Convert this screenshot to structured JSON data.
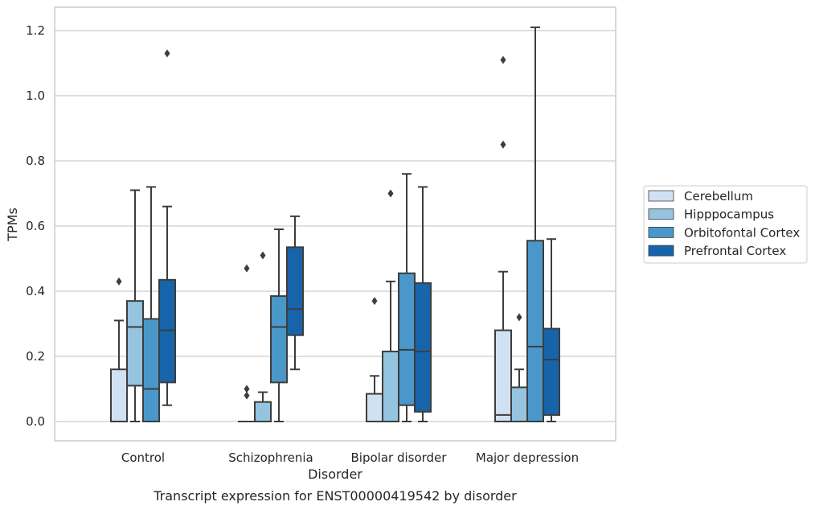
{
  "chart_data": {
    "type": "box",
    "title": "",
    "caption": "Transcript expression for ENST00000419542 by disorder",
    "xlabel": "Disorder",
    "ylabel": "TPMs",
    "ylim": [
      -0.06,
      1.27
    ],
    "yticks": [
      "0.0",
      "0.2",
      "0.4",
      "0.6",
      "0.8",
      "1.0",
      "1.2"
    ],
    "grid": "horizontal",
    "legend_position": "right",
    "categories": [
      "Control",
      "Schizophrenia",
      "Bipolar disorder",
      "Major depression"
    ],
    "series": [
      {
        "name": "Cerebellum",
        "color": "#d0e1f2",
        "boxes": [
          {
            "whislo": 0.0,
            "q1": 0.0,
            "med": 0.0,
            "q3": 0.16,
            "whishi": 0.31,
            "fliers": [
              0.43
            ]
          },
          {
            "whislo": 0.0,
            "q1": 0.0,
            "med": 0.0,
            "q3": 0.0,
            "whishi": 0.0,
            "fliers": [
              0.1,
              0.08,
              0.47
            ]
          },
          {
            "whislo": 0.0,
            "q1": 0.0,
            "med": 0.0,
            "q3": 0.085,
            "whishi": 0.14,
            "fliers": [
              0.37
            ]
          },
          {
            "whislo": 0.0,
            "q1": 0.0,
            "med": 0.02,
            "q3": 0.28,
            "whishi": 0.46,
            "fliers": [
              0.85,
              1.11
            ]
          }
        ]
      },
      {
        "name": "Hipppocampus",
        "color": "#94c4df",
        "boxes": [
          {
            "whislo": 0.0,
            "q1": 0.11,
            "med": 0.29,
            "q3": 0.37,
            "whishi": 0.71,
            "fliers": []
          },
          {
            "whislo": 0.0,
            "q1": 0.0,
            "med": 0.0,
            "q3": 0.06,
            "whishi": 0.09,
            "fliers": [
              0.51
            ]
          },
          {
            "whislo": 0.0,
            "q1": 0.0,
            "med": 0.0,
            "q3": 0.215,
            "whishi": 0.43,
            "fliers": [
              0.7
            ]
          },
          {
            "whislo": 0.0,
            "q1": 0.0,
            "med": 0.0,
            "q3": 0.105,
            "whishi": 0.16,
            "fliers": [
              0.32
            ]
          }
        ]
      },
      {
        "name": "Orbitofontal Cortex",
        "color": "#4a98c9",
        "boxes": [
          {
            "whislo": 0.0,
            "q1": 0.0,
            "med": 0.1,
            "q3": 0.315,
            "whishi": 0.72,
            "fliers": []
          },
          {
            "whislo": 0.0,
            "q1": 0.12,
            "med": 0.29,
            "q3": 0.385,
            "whishi": 0.59,
            "fliers": []
          },
          {
            "whislo": 0.0,
            "q1": 0.05,
            "med": 0.22,
            "q3": 0.455,
            "whishi": 0.76,
            "fliers": []
          },
          {
            "whislo": 0.0,
            "q1": 0.0,
            "med": 0.23,
            "q3": 0.555,
            "whishi": 1.21,
            "fliers": []
          }
        ]
      },
      {
        "name": "Prefrontal Cortex",
        "color": "#1764ab",
        "boxes": [
          {
            "whislo": 0.05,
            "q1": 0.12,
            "med": 0.28,
            "q3": 0.435,
            "whishi": 0.66,
            "fliers": [
              1.13
            ]
          },
          {
            "whislo": 0.16,
            "q1": 0.265,
            "med": 0.345,
            "q3": 0.535,
            "whishi": 0.63,
            "fliers": []
          },
          {
            "whislo": 0.0,
            "q1": 0.03,
            "med": 0.215,
            "q3": 0.425,
            "whishi": 0.72,
            "fliers": []
          },
          {
            "whislo": 0.0,
            "q1": 0.02,
            "med": 0.19,
            "q3": 0.285,
            "whishi": 0.56,
            "fliers": []
          }
        ]
      }
    ],
    "colors": {
      "axes_edge": "#cccccc",
      "grid": "#cccccc",
      "box_edge": "#3d3d3d",
      "text": "#262626"
    }
  }
}
